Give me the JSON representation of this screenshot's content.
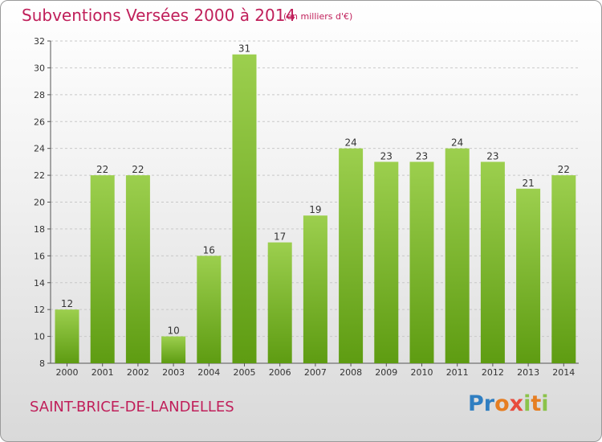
{
  "header": {
    "title": "Subventions Versées 2000 à 2014",
    "unit": "(en milliers d'€)"
  },
  "footer": {
    "commune": "SAINT-BRICE-DE-LANDELLES",
    "logo": "Proxiti"
  },
  "colors": {
    "accent": "#c01f5a",
    "bar_top": "#9ccf4e",
    "bar_bottom": "#5e9c12"
  },
  "chart_data": {
    "type": "bar",
    "categories": [
      "2000",
      "2001",
      "2002",
      "2003",
      "2004",
      "2005",
      "2006",
      "2007",
      "2008",
      "2009",
      "2010",
      "2011",
      "2012",
      "2013",
      "2014"
    ],
    "values": [
      12,
      22,
      22,
      10,
      16,
      31,
      17,
      19,
      24,
      23,
      23,
      24,
      23,
      21,
      22
    ],
    "ylim": [
      8,
      32
    ],
    "yticks": [
      8,
      10,
      12,
      14,
      16,
      18,
      20,
      22,
      24,
      26,
      28,
      30,
      32
    ],
    "grid": true,
    "legend": "none"
  }
}
